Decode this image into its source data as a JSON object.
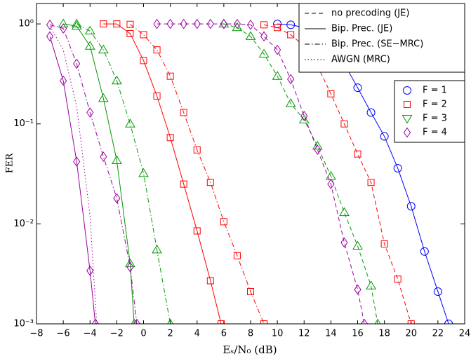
{
  "chart_data": {
    "type": "line",
    "log_y": true,
    "xlabel": "Eₛ/N₀ (dB)",
    "ylabel": "FER",
    "xlim": [
      -8,
      24
    ],
    "ylim": [
      0.001,
      1.6
    ],
    "xticks": [
      {
        "value": -8,
        "label": "−8"
      },
      {
        "value": -6,
        "label": "−6"
      },
      {
        "value": -4,
        "label": "−4"
      },
      {
        "value": -2,
        "label": "−2"
      },
      0,
      2,
      4,
      6,
      8,
      10,
      12,
      14,
      16,
      18,
      20,
      22,
      24
    ],
    "yticks": [
      {
        "value": 0.001,
        "label": "10⁻³"
      },
      {
        "value": 0.01,
        "label": "10⁻²"
      },
      {
        "value": 0.1,
        "label": "10⁻¹"
      },
      {
        "value": 1,
        "label": "10⁰"
      }
    ],
    "line_styles": [
      {
        "name": "no precoding (JE)",
        "dash": "dashed"
      },
      {
        "name": "Bip. Prec. (JE)",
        "dash": "solid"
      },
      {
        "name": "Bip. Prec. (SE−MRC)",
        "dash": "dashdot"
      },
      {
        "name": "AWGN (MRC)",
        "dash": "dotted"
      }
    ],
    "markers": [
      {
        "name": "F = 1",
        "color": "#0000ff",
        "marker": "circle"
      },
      {
        "name": "F = 2",
        "color": "#ff0000",
        "marker": "square"
      },
      {
        "name": "F = 3",
        "color": "#009900",
        "marker": "triangle"
      },
      {
        "name": "F = 4",
        "color": "#9900a0",
        "marker": "diamond"
      }
    ],
    "series": [
      {
        "color": "#0000ff",
        "marker": "circle",
        "dash": "solid",
        "x": [
          10,
          11,
          12,
          13,
          14,
          15,
          16,
          17,
          18,
          19,
          20,
          21,
          22,
          22.8
        ],
        "values": [
          1.0,
          0.98,
          0.92,
          0.8,
          0.6,
          0.4,
          0.23,
          0.13,
          0.075,
          0.036,
          0.015,
          0.0053,
          0.0021,
          0.001
        ]
      },
      {
        "color": "#ff0000",
        "marker": "square",
        "dash": "solid",
        "x": [
          -3,
          -2,
          -1,
          0,
          1,
          2,
          3,
          4,
          5,
          5.8
        ],
        "values": [
          1.0,
          1.0,
          0.8,
          0.43,
          0.19,
          0.073,
          0.025,
          0.0085,
          0.0027,
          0.001
        ]
      },
      {
        "color": "#ff0000",
        "marker": "square",
        "dash": "dashdot",
        "x": [
          -1,
          0,
          1,
          2,
          3,
          4,
          5,
          6,
          7,
          8,
          9
        ],
        "values": [
          0.99,
          0.78,
          0.55,
          0.3,
          0.13,
          0.055,
          0.026,
          0.0105,
          0.0048,
          0.0021,
          0.001
        ]
      },
      {
        "color": "#ff0000",
        "marker": "square",
        "dash": "dashed",
        "x": [
          9,
          10,
          11,
          12,
          13,
          14,
          15,
          16,
          17,
          18,
          19,
          20
        ],
        "values": [
          0.98,
          0.92,
          0.78,
          0.6,
          0.38,
          0.2,
          0.1,
          0.05,
          0.026,
          0.0063,
          0.0028,
          0.001
        ]
      },
      {
        "color": "#009900",
        "marker": "triangle",
        "dash": "solid",
        "x": [
          -6,
          -5,
          -4,
          -3,
          -2,
          -1,
          -0.7
        ],
        "values": [
          1.0,
          0.95,
          0.6,
          0.18,
          0.043,
          0.004,
          0.001
        ]
      },
      {
        "color": "#009900",
        "marker": "triangle",
        "dash": "dashdot",
        "x": [
          -5,
          -4,
          -3,
          -2,
          -1,
          0,
          1,
          2
        ],
        "values": [
          1.0,
          0.85,
          0.55,
          0.27,
          0.1,
          0.032,
          0.0055,
          0.001
        ]
      },
      {
        "color": "#009900",
        "marker": "triangle",
        "dash": "dashed",
        "x": [
          6,
          7,
          8,
          9,
          10,
          11,
          12,
          13,
          14,
          15,
          16,
          17,
          17.5
        ],
        "values": [
          1.0,
          0.92,
          0.75,
          0.5,
          0.3,
          0.16,
          0.11,
          0.06,
          0.03,
          0.013,
          0.006,
          0.0024,
          0.001
        ]
      },
      {
        "color": "#9900a0",
        "marker": "diamond",
        "dash": "solid",
        "x": [
          -7,
          -6,
          -5,
          -4,
          -3.6
        ],
        "values": [
          0.75,
          0.27,
          0.042,
          0.0034,
          0.001
        ]
      },
      {
        "color": "#9900a0",
        "marker": "diamond",
        "dash": "dashdot",
        "x": [
          -7,
          -6,
          -5,
          -4,
          -3,
          -2,
          -1,
          -0.5
        ],
        "values": [
          0.98,
          0.9,
          0.4,
          0.13,
          0.047,
          0.018,
          0.0037,
          0.001
        ]
      },
      {
        "color": "#9900a0",
        "marker": "diamond",
        "dash": "dashed",
        "x": [
          1,
          2,
          3,
          4,
          5,
          6,
          7,
          8,
          9,
          10,
          11,
          12,
          13,
          14,
          15,
          16,
          16.5
        ],
        "values": [
          1.0,
          1.0,
          1.0,
          1.0,
          1.0,
          1.0,
          1.0,
          0.98,
          0.75,
          0.55,
          0.28,
          0.12,
          0.055,
          0.025,
          0.0065,
          0.0022,
          0.001
        ]
      },
      {
        "color": "#9900a0",
        "marker": "none",
        "dash": "dotted",
        "x": [
          -7,
          -6,
          -5,
          -4,
          -3.5
        ],
        "values": [
          0.95,
          0.55,
          0.15,
          0.012,
          0.001
        ]
      }
    ]
  }
}
